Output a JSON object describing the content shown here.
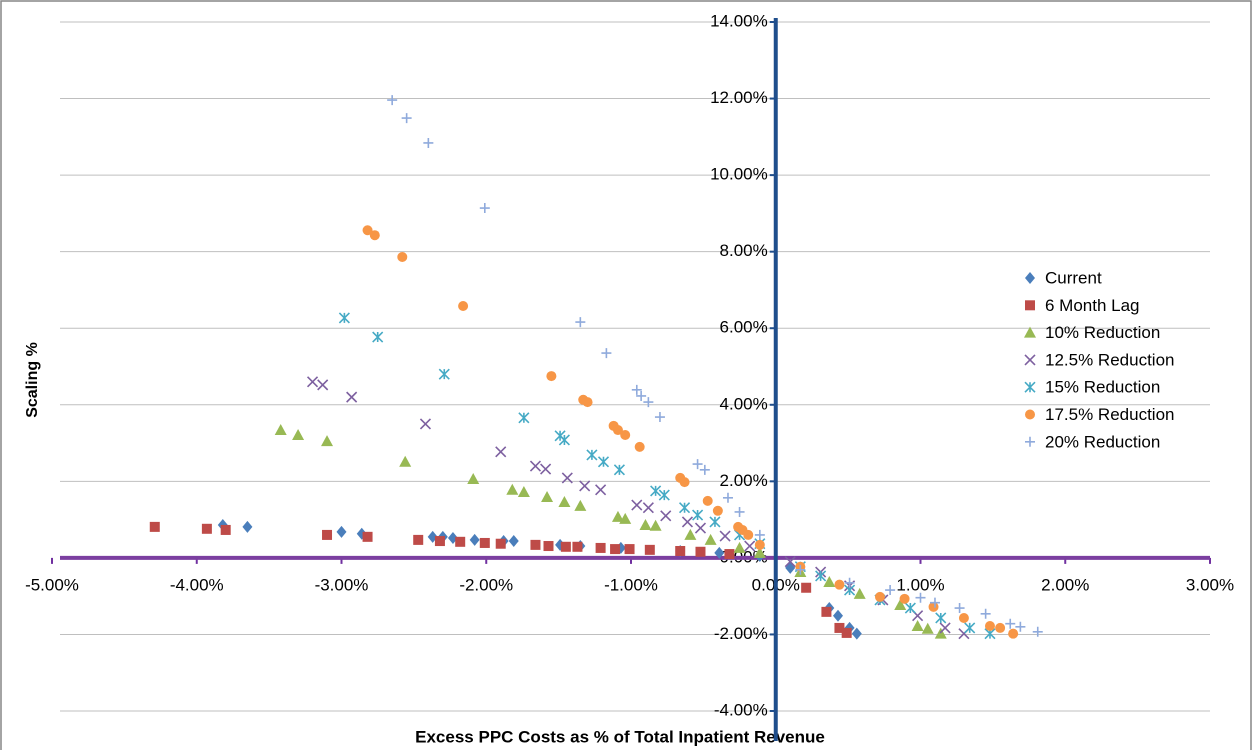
{
  "chart_data": {
    "type": "scatter",
    "xlabel": "Excess PPC Costs as % of Total Inpatient Revenue",
    "ylabel": "Scaling %",
    "xlim": [
      -5,
      3
    ],
    "ylim": [
      -4,
      14
    ],
    "xticks": [
      {
        "value": -5,
        "label": "-5.00%"
      },
      {
        "value": -4,
        "label": "-4.00%"
      },
      {
        "value": -3,
        "label": "-3.00%"
      },
      {
        "value": -2,
        "label": "-2.00%"
      },
      {
        "value": -1,
        "label": "-1.00%"
      },
      {
        "value": 0,
        "label": "0.00%"
      },
      {
        "value": 1,
        "label": "1.00%"
      },
      {
        "value": 2,
        "label": "2.00%"
      },
      {
        "value": 3,
        "label": "3.00%"
      }
    ],
    "yticks": [
      {
        "value": -4,
        "label": "-4.00%"
      },
      {
        "value": -2,
        "label": "-2.00%"
      },
      {
        "value": 0,
        "label": "0.00%"
      },
      {
        "value": 2,
        "label": "2.00%"
      },
      {
        "value": 4,
        "label": "4.00%"
      },
      {
        "value": 6,
        "label": "6.00%"
      },
      {
        "value": 8,
        "label": "8.00%"
      },
      {
        "value": 10,
        "label": "10.00%"
      },
      {
        "value": 12,
        "label": "12.00%"
      },
      {
        "value": 14,
        "label": "14.00%"
      }
    ],
    "grid": true,
    "legend": "right",
    "series": [
      {
        "name": "Current",
        "color": "#4a7ebb",
        "marker": "diamond",
        "x": [
          -3.82,
          -3.65,
          -3.0,
          -2.86,
          -2.37,
          -2.3,
          -2.23,
          -2.08,
          -1.88,
          -1.81,
          -1.49,
          -1.35,
          -1.07,
          -0.66,
          -0.39,
          -0.11,
          0.1,
          0.37,
          0.43,
          0.51,
          0.56
        ],
        "values": [
          0.86,
          0.81,
          0.68,
          0.63,
          0.55,
          0.55,
          0.52,
          0.47,
          0.44,
          0.44,
          0.34,
          0.31,
          0.26,
          0.18,
          0.13,
          0.05,
          -0.26,
          -1.31,
          -1.51,
          -1.83,
          -1.98
        ]
      },
      {
        "name": "6 Month Lag",
        "color": "#be4b48",
        "marker": "square",
        "x": [
          -4.29,
          -3.93,
          -3.8,
          -3.1,
          -2.82,
          -2.47,
          -2.32,
          -2.18,
          -2.01,
          -1.9,
          -1.66,
          -1.57,
          -1.45,
          -1.37,
          -1.21,
          -1.11,
          -1.01,
          -0.87,
          -0.66,
          -0.52,
          -0.32,
          0.21,
          0.35,
          0.44,
          0.49
        ],
        "values": [
          0.81,
          0.76,
          0.73,
          0.6,
          0.55,
          0.47,
          0.44,
          0.42,
          0.39,
          0.37,
          0.34,
          0.31,
          0.29,
          0.29,
          0.26,
          0.23,
          0.23,
          0.21,
          0.18,
          0.16,
          0.1,
          -0.78,
          -1.41,
          -1.83,
          -1.96
        ]
      },
      {
        "name": "10% Reduction",
        "color": "#98b954",
        "marker": "triangle",
        "x": [
          -3.42,
          -3.3,
          -3.1,
          -2.56,
          -2.09,
          -1.82,
          -1.74,
          -1.58,
          -1.46,
          -1.35,
          -1.09,
          -1.04,
          -0.9,
          -0.83,
          -0.59,
          -0.45,
          -0.25,
          -0.11,
          0.17,
          0.37,
          0.58,
          0.86,
          0.98,
          1.05,
          1.14
        ],
        "values": [
          3.34,
          3.21,
          3.05,
          2.51,
          2.06,
          1.78,
          1.72,
          1.59,
          1.46,
          1.36,
          1.07,
          1.02,
          0.86,
          0.84,
          0.6,
          0.47,
          0.26,
          0.13,
          -0.37,
          -0.63,
          -0.94,
          -1.23,
          -1.78,
          -1.85,
          -1.98
        ]
      },
      {
        "name": "12.5% Reduction",
        "color": "#7d60a0",
        "marker": "cross",
        "x": [
          -3.2,
          -3.13,
          -2.93,
          -2.42,
          -1.9,
          -1.66,
          -1.59,
          -1.44,
          -1.32,
          -1.21,
          -0.96,
          -0.88,
          -0.76,
          -0.61,
          -0.52,
          -0.35,
          -0.18,
          0.1,
          0.31,
          0.51,
          0.74,
          0.98,
          1.17,
          1.3
        ],
        "values": [
          4.6,
          4.52,
          4.2,
          3.5,
          2.77,
          2.4,
          2.32,
          2.09,
          1.88,
          1.78,
          1.38,
          1.31,
          1.1,
          0.94,
          0.78,
          0.57,
          0.31,
          -0.1,
          -0.37,
          -0.73,
          -1.1,
          -1.51,
          -1.83,
          -1.98
        ]
      },
      {
        "name": "15% Reduction",
        "color": "#46aac5",
        "marker": "asterisk",
        "x": [
          -2.98,
          -2.75,
          -2.29,
          -1.74,
          -1.49,
          -1.46,
          -1.27,
          -1.19,
          -1.08,
          -0.83,
          -0.77,
          -0.63,
          -0.54,
          -0.42,
          -0.25,
          -0.11,
          0.17,
          0.31,
          0.51,
          0.72,
          0.93,
          1.14,
          1.34,
          1.48
        ],
        "values": [
          6.27,
          5.77,
          4.8,
          3.66,
          3.19,
          3.08,
          2.69,
          2.51,
          2.3,
          1.75,
          1.64,
          1.31,
          1.12,
          0.94,
          0.6,
          0.37,
          -0.23,
          -0.47,
          -0.84,
          -1.1,
          -1.31,
          -1.57,
          -1.83,
          -1.98
        ]
      },
      {
        "name": "17.5% Reduction",
        "color": "#f79646",
        "marker": "circle",
        "x": [
          -2.82,
          -2.77,
          -2.58,
          -2.16,
          -1.55,
          -1.33,
          -1.3,
          -1.12,
          -1.09,
          -1.04,
          -0.94,
          -0.66,
          -0.63,
          -0.47,
          -0.4,
          -0.26,
          -0.23,
          -0.19,
          -0.11,
          0.17,
          0.44,
          0.72,
          0.89,
          1.09,
          1.3,
          1.48,
          1.55,
          1.64
        ],
        "values": [
          8.56,
          8.43,
          7.86,
          6.58,
          4.75,
          4.13,
          4.07,
          3.45,
          3.34,
          3.21,
          2.9,
          2.09,
          1.98,
          1.49,
          1.23,
          0.81,
          0.73,
          0.6,
          0.34,
          -0.23,
          -0.7,
          -1.02,
          -1.07,
          -1.28,
          -1.57,
          -1.78,
          -1.83,
          -1.98
        ]
      },
      {
        "name": "20% Reduction",
        "color": "#8faadc",
        "marker": "plus",
        "x": [
          -2.65,
          -2.55,
          -2.4,
          -2.01,
          -1.35,
          -1.17,
          -0.96,
          -0.93,
          -0.88,
          -0.8,
          -0.54,
          -0.49,
          -0.33,
          -0.25,
          -0.11,
          0.17,
          0.51,
          0.79,
          1.0,
          1.1,
          1.27,
          1.45,
          1.62,
          1.69,
          1.81
        ],
        "values": [
          11.96,
          11.49,
          10.84,
          9.14,
          6.16,
          5.35,
          4.39,
          4.23,
          4.07,
          3.68,
          2.45,
          2.3,
          1.57,
          1.2,
          0.6,
          -0.31,
          -0.65,
          -0.84,
          -1.04,
          -1.17,
          -1.31,
          -1.46,
          -1.72,
          -1.8,
          -1.93
        ]
      }
    ]
  }
}
